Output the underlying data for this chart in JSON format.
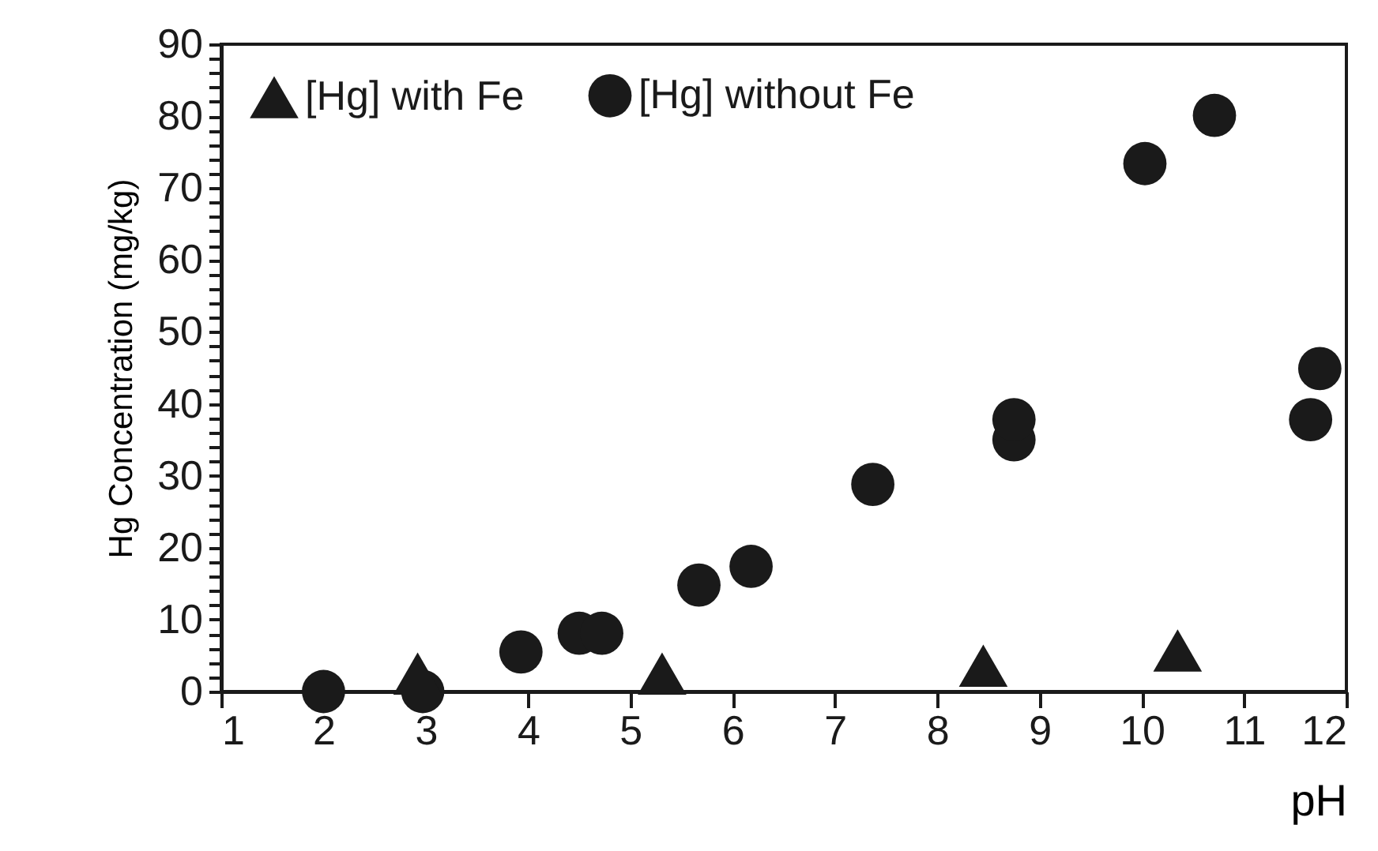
{
  "chart_data": {
    "type": "scatter",
    "xlabel": "pH",
    "ylabel": "Hg Concentration (mg/kg)",
    "xlim": [
      1,
      12
    ],
    "xticks": [
      1,
      2,
      3,
      4,
      5,
      6,
      7,
      8,
      9,
      10,
      11,
      12
    ],
    "ylim": [
      0,
      90
    ],
    "yticks": [
      0,
      {
        "value": 2,
        "label": null
      },
      {
        "value": 4,
        "label": null
      },
      {
        "value": 6,
        "label": null
      },
      {
        "value": 8,
        "label": null
      },
      10,
      {
        "value": 12,
        "label": null
      },
      {
        "value": 14,
        "label": null
      },
      {
        "value": 16,
        "label": null
      },
      {
        "value": 18,
        "label": null
      },
      20,
      {
        "value": 22,
        "label": null
      },
      {
        "value": 24,
        "label": null
      },
      {
        "value": 26,
        "label": null
      },
      {
        "value": 28,
        "label": null
      },
      30,
      {
        "value": 32,
        "label": null
      },
      {
        "value": 34,
        "label": null
      },
      {
        "value": 36,
        "label": null
      },
      {
        "value": 38,
        "label": null
      },
      40,
      {
        "value": 42,
        "label": null
      },
      {
        "value": 44,
        "label": null
      },
      {
        "value": 46,
        "label": null
      },
      {
        "value": 48,
        "label": null
      },
      50,
      {
        "value": 52,
        "label": null
      },
      {
        "value": 54,
        "label": null
      },
      {
        "value": 56,
        "label": null
      },
      {
        "value": 58,
        "label": null
      },
      60,
      {
        "value": 62,
        "label": null
      },
      {
        "value": 64,
        "label": null
      },
      {
        "value": 66,
        "label": null
      },
      {
        "value": 68,
        "label": null
      },
      70,
      {
        "value": 72,
        "label": null
      },
      {
        "value": 74,
        "label": null
      },
      {
        "value": 76,
        "label": null
      },
      {
        "value": 78,
        "label": null
      },
      80,
      {
        "value": 82,
        "label": null
      },
      {
        "value": 84,
        "label": null
      },
      {
        "value": 86,
        "label": null
      },
      {
        "value": 88,
        "label": null
      },
      90
    ],
    "grid": false,
    "legend": "top left",
    "series": [
      {
        "name": "[Hg] with Fe",
        "color": "#1a1a1a",
        "marker": "triangle",
        "x": [
          2.92,
          5.31,
          8.45,
          10.35
        ],
        "values": [
          2.5,
          2.5,
          3.6,
          5.7
        ]
      },
      {
        "name": "[Hg] without Fe",
        "color": "#1a1a1a",
        "marker": "circle",
        "x": [
          2.0,
          2.97,
          3.93,
          4.5,
          4.72,
          5.67,
          6.18,
          7.37,
          8.75,
          8.75,
          10.03,
          10.71,
          11.65,
          11.74
        ],
        "values": [
          0,
          0,
          5.5,
          8.1,
          8.1,
          14.8,
          17.4,
          28.8,
          35.0,
          37.8,
          73.4,
          80.1,
          37.8,
          44.9
        ]
      }
    ]
  }
}
